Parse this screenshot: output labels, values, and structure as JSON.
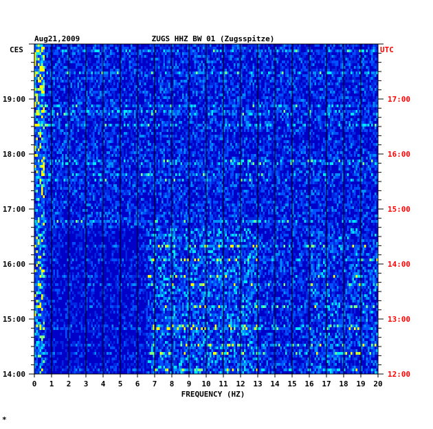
{
  "chart_data": {
    "type": "heatmap",
    "title": "ZUGS HHZ BW 01 (Zugsspitze)",
    "date": "Aug21,2009",
    "xlabel": "FREQUENCY (HZ)",
    "left_axis_label": "CES",
    "right_axis_label": "UTC",
    "x_ticks": [
      "0",
      "1",
      "2",
      "3",
      "4",
      "5",
      "6",
      "7",
      "8",
      "9",
      "10",
      "11",
      "12",
      "13",
      "14",
      "15",
      "16",
      "17",
      "18",
      "19",
      "20"
    ],
    "xlim": [
      0,
      20
    ],
    "y_ticks_left": [
      "19:00",
      "18:00",
      "17:00",
      "16:00",
      "15:00",
      "14:00"
    ],
    "y_ticks_right": [
      "17:00",
      "16:00",
      "15:00",
      "14:00",
      "13:00",
      "12:00"
    ],
    "left_time_range": [
      "14:00",
      "20:00"
    ],
    "right_time_range": [
      "12:00",
      "18:00"
    ],
    "corner_mark": "*",
    "grid": true,
    "colors": {
      "background": "#0000c8",
      "low": "#0000a0",
      "mid": "#0050ff",
      "high": "#00c8ff",
      "peak": "#ffff00",
      "axis_text": "#000000",
      "utc_text": "#ff0000"
    }
  }
}
